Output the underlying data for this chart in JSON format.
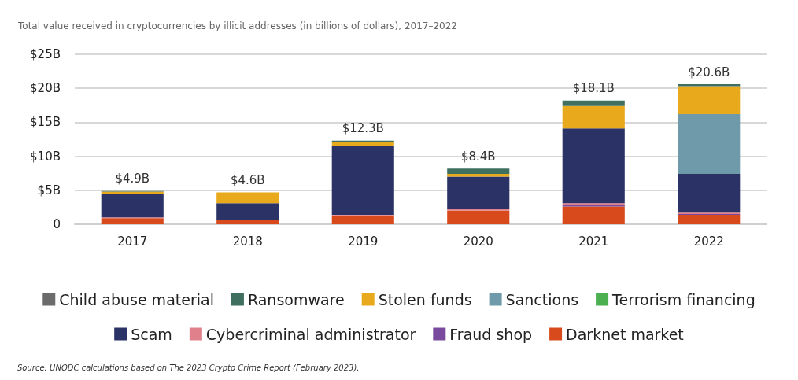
{
  "chart_data": {
    "type": "bar",
    "stacked": true,
    "title": "Total value received in cryptocurrencies by illicit addresses (in billions of dollars), 2017–2022",
    "categories": [
      "2017",
      "2018",
      "2019",
      "2020",
      "2021",
      "2022"
    ],
    "series": [
      {
        "name": "Darknet market",
        "color": "#d84a1c",
        "values": [
          0.9,
          0.7,
          1.3,
          2.0,
          2.6,
          1.4
        ]
      },
      {
        "name": "Fraud shop",
        "color": "#7a4a9e",
        "values": [
          0,
          0,
          0,
          null,
          0.2,
          0.1
        ]
      },
      {
        "name": "Cybercriminal administrator",
        "color": "#e0808a",
        "values": [
          0.1,
          0,
          0.1,
          0.2,
          0.3,
          0.2
        ]
      },
      {
        "name": "Scam",
        "color": "#2b3366",
        "values": [
          3.5,
          2.4,
          10.1,
          4.8,
          11.0,
          5.7
        ]
      },
      {
        "name": "Terrorism financing",
        "color": "#4caf50",
        "values": [
          0,
          0,
          null,
          null,
          0,
          0
        ]
      },
      {
        "name": "Sanctions",
        "color": "#6f9aaa",
        "values": [
          0,
          0,
          0,
          0,
          0,
          8.8
        ]
      },
      {
        "name": "Stolen funds",
        "color": "#e8a91c",
        "values": [
          0.3,
          1.6,
          0.6,
          0.4,
          3.3,
          4.1
        ]
      },
      {
        "name": "Ransomware",
        "color": "#3f6f5f",
        "values": [
          0.1,
          0,
          0.2,
          0.8,
          0.8,
          0.3
        ]
      },
      {
        "name": "Child abuse material",
        "color": "#6b6b6b",
        "values": [
          0,
          0,
          0,
          0,
          0,
          0
        ]
      }
    ],
    "totals": [
      "$4.9B",
      "$4.6B",
      "$12.3B",
      "$8.4B",
      "$18.1B",
      "$20.6B"
    ],
    "ylim": [
      0,
      25
    ],
    "yticks": [
      0,
      {
        "value": 5,
        "label": "$5B"
      },
      {
        "value": 10,
        "label": "$10B"
      },
      {
        "value": 15,
        "label": "$15B"
      },
      {
        "value": 20,
        "label": "$20B"
      },
      {
        "value": 25,
        "label": "$25B"
      }
    ],
    "grid": "y",
    "legend": "bottom",
    "annotations": [
      "Source: UNODC calculations based on The 2023 Crypto Crime Report (February 2023)."
    ]
  }
}
